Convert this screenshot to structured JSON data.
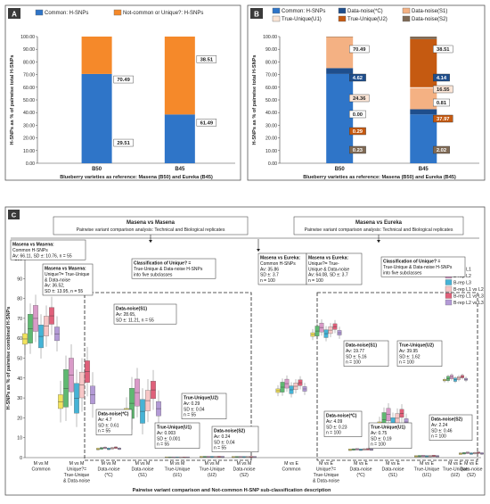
{
  "chart_data": [
    {
      "panel": "A",
      "type": "bar",
      "stacked": true,
      "categories": [
        "B50",
        "B45"
      ],
      "series": [
        {
          "name": "Common: H-SNPs",
          "color": "#2f75c8",
          "values": [
            70.49,
            38.51
          ]
        },
        {
          "name": "Not-common or Unique?: H-SNPs",
          "color": "#f5892a",
          "values": [
            29.51,
            61.49
          ]
        }
      ],
      "ylabel": "H-SNPs as % of pairwise total H-SNPs",
      "xlabel": "Blueberry varieties as reference: Masena (B50) and Eureka (B45)",
      "ylim": [
        0,
        100
      ],
      "yticks": [
        "0.00",
        "10.00",
        "20.00",
        "30.00",
        "40.00",
        "50.00",
        "60.00",
        "70.00",
        "80.00",
        "90.00",
        "100.00"
      ],
      "legend": "top"
    },
    {
      "panel": "B",
      "type": "bar",
      "stacked": true,
      "categories": [
        "B50",
        "B45"
      ],
      "series": [
        {
          "name": "Common: H-SNPs",
          "color": "#2f75c8",
          "values": [
            70.49,
            38.51
          ]
        },
        {
          "name": "Data-noise(*C)",
          "color": "#1f4e8c",
          "values": [
            4.62,
            4.14
          ]
        },
        {
          "name": "Data-noise(S1)",
          "color": "#f4b183",
          "values": [
            24.36,
            16.55
          ]
        },
        {
          "name": "True-Unique(U1)",
          "color": "#fbe5d6",
          "values": [
            0.0,
            0.81
          ]
        },
        {
          "name": "True-Unique(U2)",
          "color": "#c55a11",
          "values": [
            0.29,
            37.97
          ]
        },
        {
          "name": "Data-noise(S2)",
          "color": "#7f6a55",
          "values": [
            0.23,
            2.02
          ]
        }
      ],
      "ylabel": "H-SNPs as % of pairwise total H-SNPs",
      "xlabel": "Blueberry varieties as reference: Masena (B50) and Eureka (B45)",
      "ylim": [
        0,
        100
      ],
      "yticks": [
        "0.00",
        "10.00",
        "20.00",
        "30.00",
        "40.00",
        "50.00",
        "60.00",
        "70.00",
        "80.00",
        "90.00",
        "100.00"
      ],
      "legend": "top"
    },
    {
      "panel": "C",
      "type": "box",
      "ylabel": "H-SNPs as % of pairwise combined H-SNPs",
      "xlabel": "Pairwise variant comparison and Not-common H-SNP sub-classification description",
      "ylim": [
        0,
        100
      ],
      "yticks": [
        "0",
        "10",
        "20",
        "30",
        "40",
        "50",
        "60",
        "70",
        "80",
        "90",
        "100"
      ],
      "legend": [
        {
          "name": "T-rep",
          "color": "#f2e35c"
        },
        {
          "name": "B-rep L1",
          "color": "#5fb971"
        },
        {
          "name": "B-rep L2",
          "color": "#d99ac8"
        },
        {
          "name": "B-rep L3",
          "color": "#45b3d6"
        },
        {
          "name": "B-rep L1 vs L2",
          "color": "#f7c6c6"
        },
        {
          "name": "B-rep L1 vs L3",
          "color": "#e0607a"
        },
        {
          "name": "B-rep L2 vs L3",
          "color": "#b39ad6"
        }
      ],
      "groups": [
        {
          "label": [
            "M vs M",
            "Common"
          ],
          "center": 66.11,
          "spread": 10.76
        },
        {
          "label": [
            "M vs M",
            "Unique?=",
            "True-Unique",
            "& Data-noise"
          ],
          "center": 36.52,
          "spread": 13.95
        },
        {
          "label": [
            "M vs M",
            "Data-noise",
            "(*C)"
          ],
          "center": 4.7,
          "spread": 0.61
        },
        {
          "label": [
            "M vs M",
            "Data-noise",
            "(S1)"
          ],
          "center": 28.65,
          "spread": 11.21
        },
        {
          "label": [
            "M vs M",
            "True-Unique",
            "(U1)"
          ],
          "center": 0.003,
          "spread": 0.001
        },
        {
          "label": [
            "M vs M",
            "True-Unique",
            "(U2)"
          ],
          "center": 0.29,
          "spread": 0.04
        },
        {
          "label": [
            "M vs M",
            "Data-noise",
            "(S2)"
          ],
          "center": 0.24,
          "spread": 0.04
        },
        {
          "label": [
            "M vs E",
            "Common"
          ],
          "center": 35.86,
          "spread": 3.7
        },
        {
          "label": [
            "M vs E",
            "Unique?=",
            "True-Unique",
            "& Data-noise"
          ],
          "center": 64.08,
          "spread": 3.7
        },
        {
          "label": [
            "M vs E",
            "Data-noise",
            "(*C)"
          ],
          "center": 4.09,
          "spread": 0.23
        },
        {
          "label": [
            "M vs E",
            "Data-noise",
            "(S1)"
          ],
          "center": 19.77,
          "spread": 5.16
        },
        {
          "label": [
            "M vs E",
            "True-Unique",
            "(U1)"
          ],
          "center": 0.75,
          "spread": 0.19
        },
        {
          "label": [
            "M vs E",
            "True-Unique",
            "(U2)"
          ],
          "center": 39.95,
          "spread": 1.62
        },
        {
          "label": [
            "M vs E",
            "Data-noise",
            "(S2)"
          ],
          "center": 2.24,
          "spread": 0.46
        }
      ],
      "headers": [
        {
          "line1": "Masena vs Masena",
          "line2": "Pairwise variant comparison analysis: Technical and Biological replicates"
        },
        {
          "line1": "Masena vs Eureka",
          "line2": "Pairwise variant comparison analysis: Technical and Biological replicates"
        }
      ],
      "annotations": [
        [
          "Masena vs Masena:",
          "Common H-SNPs",
          "Av: 66.11, SD ±: 10.76, n = 55"
        ],
        [
          "Masena vs Masena:",
          "Unique?= True-Unique",
          "& Data-noise",
          "Av: 36.52,",
          "SD ±: 13.95, n = 55"
        ],
        [
          "Classification of Unique? =",
          "True-Unique & Data-noise H-SNPs",
          "into five subclasses"
        ],
        [
          "Data-noise(S1)",
          "Av: 28.65,",
          "SD ±: 11.21, n = 55"
        ],
        [
          "Data-noise(*C)",
          "Av: 4.7",
          "SD ±: 0.61",
          "n = 55"
        ],
        [
          "True-Unique(U1)",
          "Av: 0.003",
          "SD ±: 0.001",
          "n = 55"
        ],
        [
          "True-Unique(U2)",
          "Av: 0.29",
          "SD ±: 0.04",
          "n = 55"
        ],
        [
          "Data-noise(S2)",
          "Av: 0.24",
          "SD ±: 0.04",
          "n = 55"
        ],
        [
          "Masena vs Eureka:",
          "Common H-SNPs",
          "Av: 35.86",
          "SD ±: 3.7",
          "n = 100"
        ],
        [
          "Masena vs Eureka:",
          "Unique?= True-",
          "Unique & Data-noise",
          "Av: 64.08, SD ±: 3.7",
          "n = 100"
        ],
        [
          "Classification of Unique? =",
          "True-Unique & Data-noise H-SNPs",
          "into five subclasses"
        ],
        [
          "Data-noise(S1)",
          "Av: 19.77",
          "SD ±: 5.16",
          "n = 100"
        ],
        [
          "True-Unique(U2)",
          "Av: 39.95",
          "SD ±: 1.62",
          "n = 100"
        ],
        [
          "Data-noise(*C)",
          "Av: 4.09",
          "SD ±: 0.23",
          "n = 100"
        ],
        [
          "True-Unique(U1)",
          "Av: 0.75",
          "SD ±: 0.19",
          "n = 100"
        ],
        [
          "Data-noise(S2)",
          "Av: 2.24",
          "SD ±: 0.46",
          "n = 100"
        ]
      ]
    }
  ]
}
